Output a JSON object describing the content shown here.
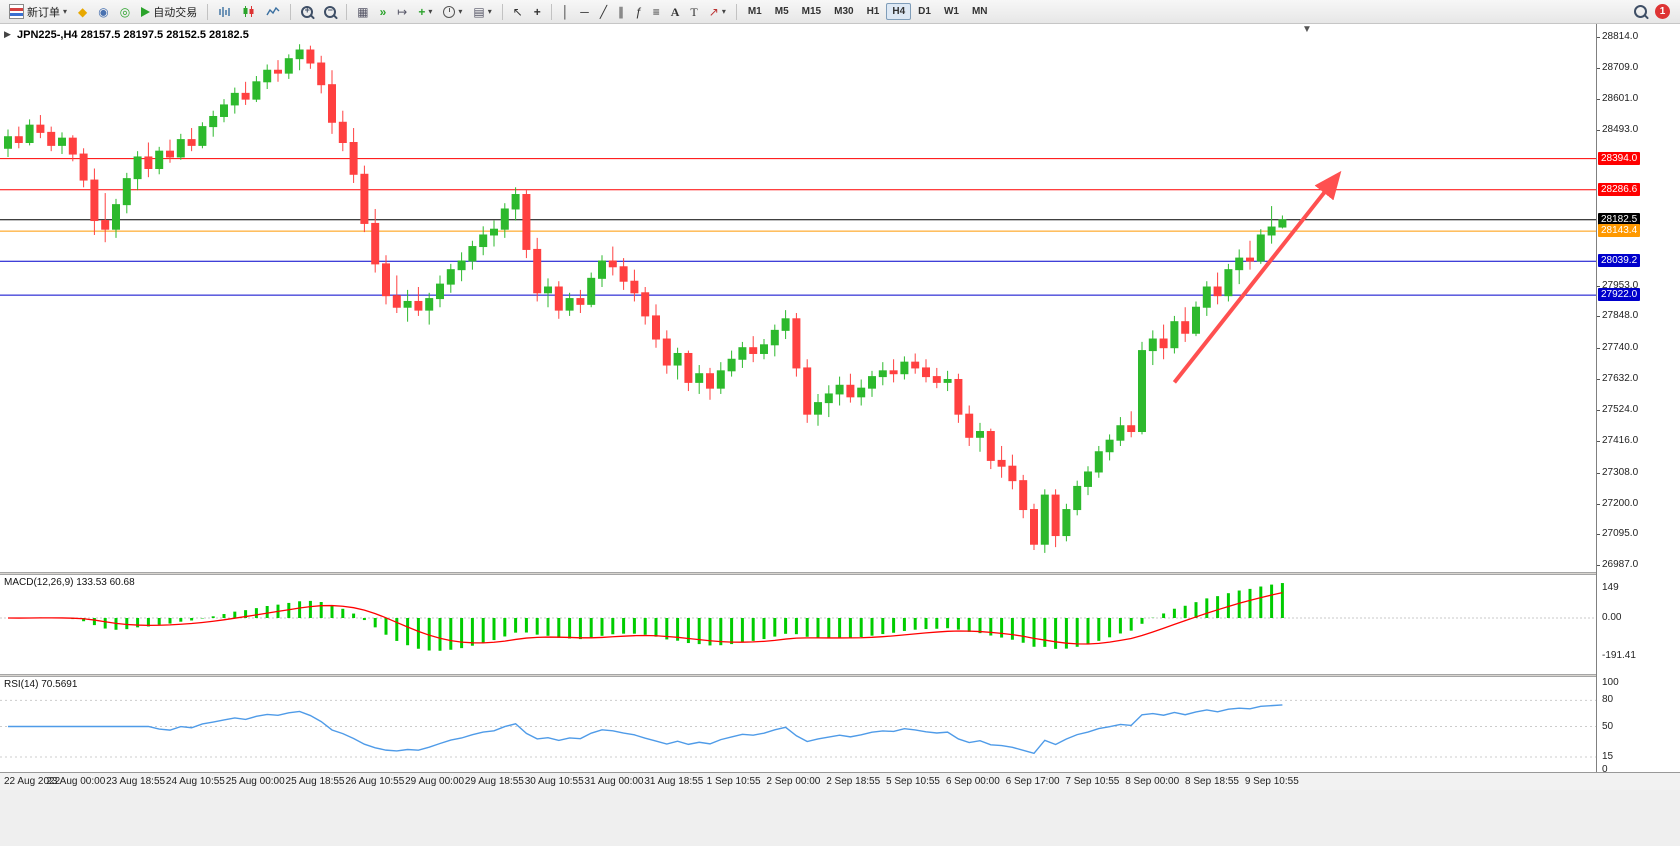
{
  "toolbar": {
    "new_order_label": "新订单",
    "autotrading_label": "自动交易",
    "timeframes": [
      "M1",
      "M5",
      "M15",
      "M30",
      "H1",
      "H4",
      "D1",
      "W1",
      "MN"
    ],
    "active_timeframe": "H4",
    "notification_badge": "1"
  },
  "chart_data": {
    "type": "candlestick",
    "symbol": "JPN225-",
    "timeframe": "H4",
    "symbol_header": "JPN225-,H4 28157.5 28197.5 28152.5 28182.5",
    "ohlc_current": {
      "open": 28157.5,
      "high": 28197.5,
      "low": 28152.5,
      "close": 28182.5
    },
    "price_axis_ticks": [
      28814,
      28709,
      28601,
      28493,
      28385,
      28277,
      28169,
      28061,
      27953,
      27848,
      27740,
      27632,
      27524,
      27416,
      27308,
      27200,
      27095,
      26987
    ],
    "levels": [
      {
        "price": 28394.0,
        "label": "28394.0",
        "color": "#ff0000"
      },
      {
        "price": 28286.6,
        "label": "28286.6",
        "color": "#ff0000"
      },
      {
        "price": 28182.5,
        "label": "28182.5",
        "color": "#000000"
      },
      {
        "price": 28143.4,
        "label": "28143.4",
        "color": "#ff9900"
      },
      {
        "price": 28039.2,
        "label": "28039.2",
        "color": "#0000cc"
      },
      {
        "price": 27922.0,
        "label": "27922.0",
        "color": "#0000cc"
      }
    ],
    "trend_arrow": {
      "from_candle": 108,
      "from_price": 27620,
      "to_candle": 123,
      "to_price": 28330,
      "color": "#ff5050"
    },
    "time_labels": [
      "22 Aug 2022",
      "23 Aug 00:00",
      "23 Aug 18:55",
      "24 Aug 10:55",
      "25 Aug 00:00",
      "25 Aug 18:55",
      "26 Aug 10:55",
      "29 Aug 00:00",
      "29 Aug 18:55",
      "30 Aug 10:55",
      "31 Aug 00:00",
      "31 Aug 18:55",
      "1 Sep 10:55",
      "2 Sep 00:00",
      "2 Sep 18:55",
      "5 Sep 10:55",
      "6 Sep 00:00",
      "6 Sep 17:00",
      "7 Sep 10:55",
      "8 Sep 00:00",
      "8 Sep 18:55",
      "9 Sep 10:55"
    ],
    "colors": {
      "up": "#2db92d",
      "down": "#ff4040",
      "macd_hist": "#00cc00",
      "macd_signal": "#ff0000",
      "rsi_line": "#4f9be8"
    },
    "candles": [
      [
        28430,
        28495,
        28400,
        28470
      ],
      [
        28470,
        28505,
        28430,
        28450
      ],
      [
        28450,
        28530,
        28440,
        28510
      ],
      [
        28510,
        28545,
        28465,
        28485
      ],
      [
        28485,
        28505,
        28420,
        28440
      ],
      [
        28440,
        28485,
        28410,
        28465
      ],
      [
        28465,
        28475,
        28385,
        28410
      ],
      [
        28410,
        28430,
        28295,
        28320
      ],
      [
        28320,
        28360,
        28130,
        28180
      ],
      [
        28180,
        28275,
        28105,
        28150
      ],
      [
        28150,
        28255,
        28120,
        28235
      ],
      [
        28235,
        28345,
        28205,
        28325
      ],
      [
        28325,
        28420,
        28285,
        28400
      ],
      [
        28400,
        28450,
        28330,
        28360
      ],
      [
        28360,
        28435,
        28340,
        28420
      ],
      [
        28420,
        28460,
        28380,
        28400
      ],
      [
        28400,
        28480,
        28390,
        28460
      ],
      [
        28460,
        28500,
        28420,
        28440
      ],
      [
        28440,
        28520,
        28430,
        28505
      ],
      [
        28505,
        28560,
        28470,
        28540
      ],
      [
        28540,
        28600,
        28520,
        28580
      ],
      [
        28580,
        28640,
        28550,
        28620
      ],
      [
        28620,
        28660,
        28580,
        28600
      ],
      [
        28600,
        28680,
        28590,
        28660
      ],
      [
        28660,
        28720,
        28635,
        28700
      ],
      [
        28700,
        28735,
        28660,
        28690
      ],
      [
        28690,
        28755,
        28670,
        28740
      ],
      [
        28740,
        28790,
        28700,
        28770
      ],
      [
        28770,
        28785,
        28705,
        28725
      ],
      [
        28725,
        28750,
        28620,
        28650
      ],
      [
        28650,
        28700,
        28480,
        28520
      ],
      [
        28520,
        28560,
        28420,
        28450
      ],
      [
        28450,
        28500,
        28310,
        28340
      ],
      [
        28340,
        28370,
        28140,
        28170
      ],
      [
        28170,
        28220,
        28000,
        28030
      ],
      [
        28030,
        28060,
        27890,
        27920
      ],
      [
        27920,
        27990,
        27860,
        27880
      ],
      [
        27880,
        27940,
        27830,
        27900
      ],
      [
        27900,
        27950,
        27850,
        27870
      ],
      [
        27870,
        27930,
        27820,
        27910
      ],
      [
        27910,
        27990,
        27880,
        27960
      ],
      [
        27960,
        28030,
        27930,
        28010
      ],
      [
        28010,
        28070,
        27970,
        28040
      ],
      [
        28040,
        28110,
        28010,
        28090
      ],
      [
        28090,
        28160,
        28060,
        28130
      ],
      [
        28130,
        28180,
        28090,
        28150
      ],
      [
        28150,
        28240,
        28120,
        28220
      ],
      [
        28220,
        28295,
        28180,
        28270
      ],
      [
        28270,
        28285,
        28050,
        28080
      ],
      [
        28080,
        28120,
        27900,
        27930
      ],
      [
        27930,
        27980,
        27880,
        27950
      ],
      [
        27950,
        27970,
        27840,
        27870
      ],
      [
        27870,
        27930,
        27850,
        27910
      ],
      [
        27910,
        27940,
        27860,
        27890
      ],
      [
        27890,
        28000,
        27880,
        27980
      ],
      [
        27980,
        28060,
        27950,
        28040
      ],
      [
        28040,
        28090,
        27990,
        28020
      ],
      [
        28020,
        28050,
        27940,
        27970
      ],
      [
        27970,
        28010,
        27900,
        27930
      ],
      [
        27930,
        27950,
        27820,
        27850
      ],
      [
        27850,
        27890,
        27740,
        27770
      ],
      [
        27770,
        27800,
        27650,
        27680
      ],
      [
        27680,
        27740,
        27630,
        27720
      ],
      [
        27720,
        27730,
        27590,
        27620
      ],
      [
        27620,
        27680,
        27580,
        27650
      ],
      [
        27650,
        27670,
        27560,
        27600
      ],
      [
        27600,
        27690,
        27580,
        27660
      ],
      [
        27660,
        27730,
        27640,
        27700
      ],
      [
        27700,
        27760,
        27670,
        27740
      ],
      [
        27740,
        27780,
        27690,
        27720
      ],
      [
        27720,
        27770,
        27700,
        27750
      ],
      [
        27750,
        27820,
        27710,
        27800
      ],
      [
        27800,
        27870,
        27770,
        27840
      ],
      [
        27840,
        27860,
        27640,
        27670
      ],
      [
        27670,
        27700,
        27480,
        27510
      ],
      [
        27510,
        27580,
        27470,
        27550
      ],
      [
        27550,
        27610,
        27500,
        27580
      ],
      [
        27580,
        27640,
        27540,
        27610
      ],
      [
        27610,
        27650,
        27550,
        27570
      ],
      [
        27570,
        27630,
        27540,
        27600
      ],
      [
        27600,
        27660,
        27570,
        27640
      ],
      [
        27640,
        27690,
        27610,
        27660
      ],
      [
        27660,
        27700,
        27620,
        27650
      ],
      [
        27650,
        27710,
        27630,
        27690
      ],
      [
        27690,
        27720,
        27650,
        27670
      ],
      [
        27670,
        27700,
        27620,
        27640
      ],
      [
        27640,
        27670,
        27600,
        27620
      ],
      [
        27620,
        27660,
        27590,
        27630
      ],
      [
        27630,
        27650,
        27480,
        27510
      ],
      [
        27510,
        27540,
        27400,
        27430
      ],
      [
        27430,
        27480,
        27380,
        27450
      ],
      [
        27450,
        27460,
        27320,
        27350
      ],
      [
        27350,
        27400,
        27290,
        27330
      ],
      [
        27330,
        27370,
        27250,
        27280
      ],
      [
        27280,
        27300,
        27150,
        27180
      ],
      [
        27180,
        27200,
        27040,
        27060
      ],
      [
        27060,
        27250,
        27030,
        27230
      ],
      [
        27230,
        27250,
        27050,
        27090
      ],
      [
        27090,
        27200,
        27070,
        27180
      ],
      [
        27180,
        27280,
        27160,
        27260
      ],
      [
        27260,
        27330,
        27230,
        27310
      ],
      [
        27310,
        27400,
        27290,
        27380
      ],
      [
        27380,
        27440,
        27350,
        27420
      ],
      [
        27420,
        27500,
        27400,
        27470
      ],
      [
        27470,
        27520,
        27430,
        27450
      ],
      [
        27450,
        27760,
        27440,
        27730
      ],
      [
        27730,
        27800,
        27680,
        27770
      ],
      [
        27770,
        27820,
        27700,
        27740
      ],
      [
        27740,
        27850,
        27720,
        27830
      ],
      [
        27830,
        27880,
        27760,
        27790
      ],
      [
        27790,
        27900,
        27780,
        27880
      ],
      [
        27880,
        27970,
        27850,
        27950
      ],
      [
        27950,
        28000,
        27890,
        27920
      ],
      [
        27920,
        28030,
        27900,
        28010
      ],
      [
        28010,
        28080,
        27960,
        28050
      ],
      [
        28050,
        28110,
        28010,
        28040
      ],
      [
        28040,
        28150,
        28030,
        28130
      ],
      [
        28130,
        28230,
        28100,
        28157.5
      ],
      [
        28157.5,
        28197.5,
        28152.5,
        28182.5
      ]
    ]
  },
  "macd": {
    "label": "MACD(12,26,9) 133.53 60.68",
    "value_main": "133.53",
    "value_signal": "60.68",
    "axis": [
      {
        "label": "149",
        "value": 149
      },
      {
        "label": "0.00",
        "value": 0
      },
      {
        "label": "-191.41",
        "value": -191.41
      }
    ]
  },
  "rsi": {
    "label": "RSI(14) 70.5691",
    "value": "70.5691",
    "levels": [
      80,
      50,
      15
    ],
    "axis": [
      {
        "label": "100",
        "value": 100
      },
      {
        "label": "80",
        "value": 80
      },
      {
        "label": "50",
        "value": 50
      },
      {
        "label": "15",
        "value": 15
      },
      {
        "label": "0",
        "value": 0
      }
    ]
  }
}
